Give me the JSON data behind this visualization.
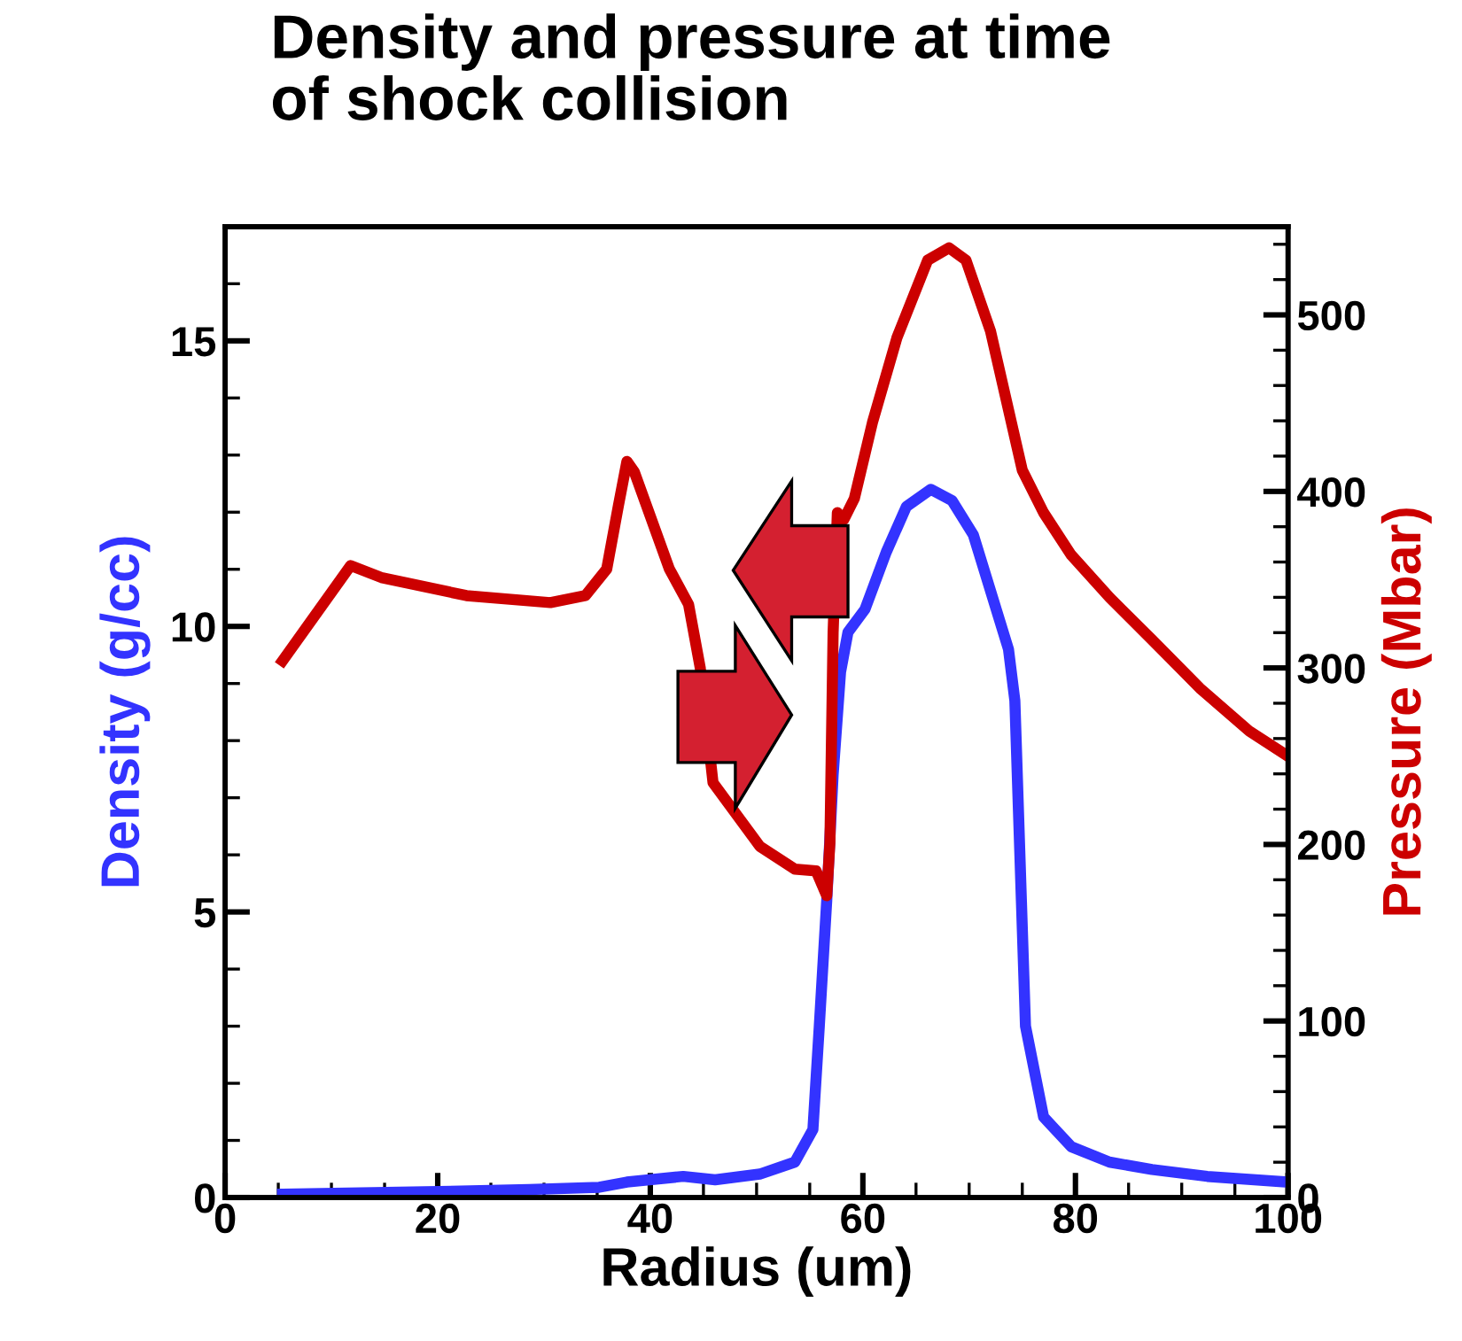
{
  "chart_data": {
    "type": "line",
    "title": "Density and pressure at time\nof shock collision",
    "xlabel": "Radius (um)",
    "ylabel": "Density (g/cc)",
    "y2label": "Pressure (Mbar)",
    "xlim": [
      0,
      100
    ],
    "xticks": [
      0,
      20,
      40,
      60,
      80,
      100
    ],
    "ylim": [
      0,
      17
    ],
    "yticks": [
      0,
      5,
      10,
      15
    ],
    "y2lim": [
      0,
      550
    ],
    "y2ticks": [
      0,
      100,
      200,
      300,
      400,
      500
    ],
    "grid": false,
    "legend": false,
    "marker": "none",
    "line_style": "solid",
    "series": [
      {
        "color": "#3333ff",
        "x": [
          5.4,
          18.8,
          28.6,
          35.2,
          37.8,
          43.1,
          46.1,
          50.3,
          53.6,
          55.3,
          55.9,
          56.6,
          57.2,
          57.9,
          58.6,
          60.2,
          62.2,
          64.1,
          66.4,
          68.4,
          70.4,
          73.7,
          74.3,
          75.3,
          77.0,
          79.6,
          83.2,
          87.2,
          92.4,
          100
        ],
        "values": [
          0.06,
          0.1,
          0.14,
          0.18,
          0.27,
          0.37,
          0.31,
          0.41,
          0.62,
          1.19,
          3.0,
          5.2,
          7.4,
          9.2,
          9.9,
          10.3,
          11.3,
          12.1,
          12.4,
          12.2,
          11.6,
          9.6,
          8.7,
          3.0,
          1.41,
          0.89,
          0.62,
          0.49,
          0.37,
          0.27
        ]
      },
      {
        "color": "#cc0000",
        "axis": "y2",
        "x": [
          5.4,
          11.8,
          14.8,
          22.7,
          30.6,
          33.9,
          35.9,
          37.0,
          37.8,
          38.5,
          41.8,
          43.6,
          44.7,
          45.9,
          50.3,
          53.6,
          55.6,
          56.6,
          56.9,
          57.2,
          57.6,
          58.2,
          59.2,
          60.9,
          63.2,
          66.1,
          68.1,
          69.7,
          72.0,
          75.0,
          77.0,
          79.6,
          83.2,
          87.2,
          91.8,
          96.4,
          100
        ],
        "values": [
          304,
          358,
          351,
          341,
          337,
          341,
          356,
          392,
          417,
          411,
          356,
          336,
          300,
          235,
          199,
          186,
          185,
          171,
          201,
          320,
          388,
          384,
          396,
          439,
          487,
          531,
          538,
          531,
          491,
          412,
          388,
          364,
          340,
          316,
          288,
          264,
          250
        ]
      }
    ]
  }
}
